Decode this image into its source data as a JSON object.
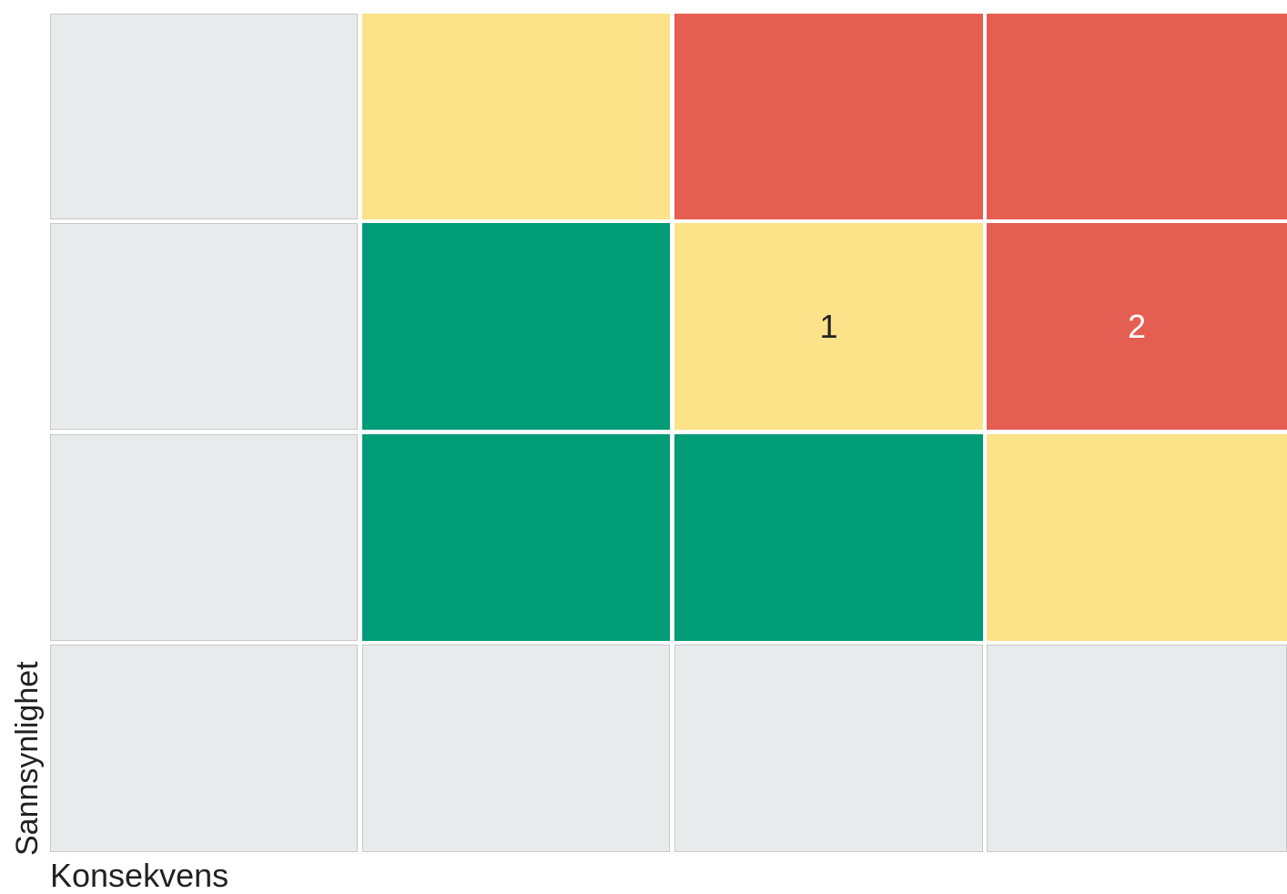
{
  "matrix": {
    "x_label": "Konsekvens",
    "y_label": "Sannsynlighet",
    "rows": [
      [
        {
          "color": "#e8ebec"
        },
        {
          "color": "#fce288"
        },
        {
          "color": "#e55e52"
        },
        {
          "color": "#e55e52"
        }
      ],
      [
        {
          "color": "#e8ebec"
        },
        {
          "color": "#009b77"
        },
        {
          "color": "#fce288",
          "label": "1",
          "text_color": "#222222"
        },
        {
          "color": "#e55e52",
          "label": "2",
          "text_color": "#ffffff"
        }
      ],
      [
        {
          "color": "#e8ebec"
        },
        {
          "color": "#009b77"
        },
        {
          "color": "#009b77"
        },
        {
          "color": "#fce288"
        }
      ],
      [
        {
          "color": "#e8ebec"
        },
        {
          "color": "#e8ebec"
        },
        {
          "color": "#e8ebec"
        },
        {
          "color": "#e8ebec"
        }
      ]
    ]
  }
}
